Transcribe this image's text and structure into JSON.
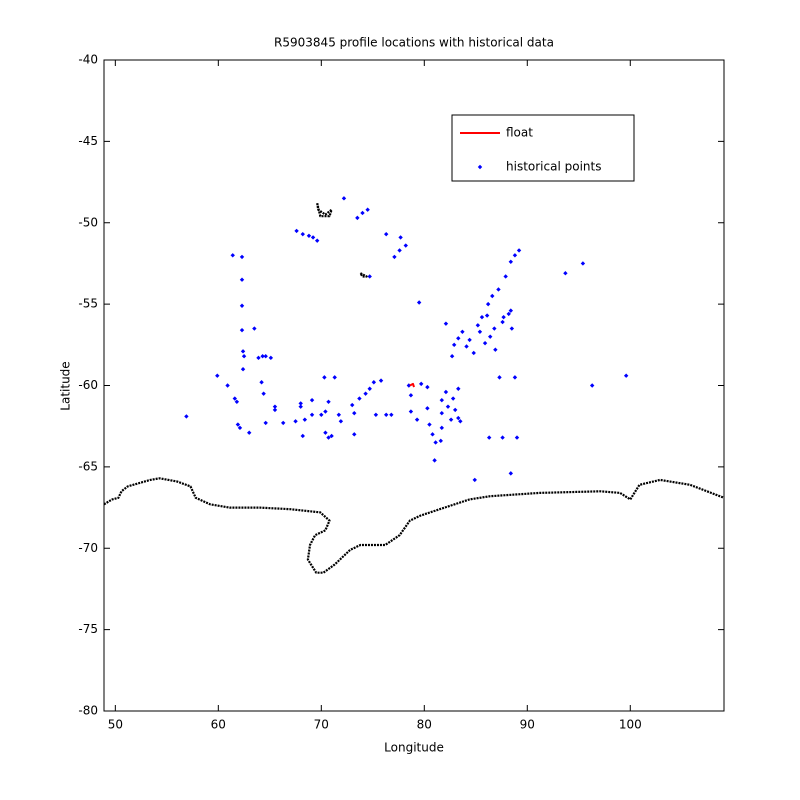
{
  "chart_data": {
    "type": "scatter",
    "title": "R5903845 profile locations with historical data",
    "x_label": "Longitude",
    "y_label": "Latitude",
    "xlim": [
      48.9,
      109.1
    ],
    "ylim": [
      -80,
      -40
    ],
    "xticks": [
      50,
      60,
      70,
      80,
      90,
      100
    ],
    "yticks": [
      -40,
      -45,
      -50,
      -55,
      -60,
      -65,
      -70,
      -75,
      -80
    ],
    "grid": false,
    "legend": "northeast",
    "series": [
      {
        "name": "float",
        "color": "#ff0000",
        "style": "line",
        "x": [
          78.6,
          78.9,
          79.0
        ],
        "values": [
          -60.0,
          -59.9,
          -60.1
        ]
      },
      {
        "name": "historical points",
        "color": "#0000ff",
        "style": "points",
        "x": [
          72.2,
          73.5,
          74.0,
          74.5,
          67.6,
          68.2,
          68.8,
          69.2,
          69.6,
          76.3,
          77.7,
          78.2,
          77.6,
          77.1,
          74.7,
          79.5,
          61.4,
          62.3,
          62.3,
          62.3,
          62.3,
          62.4,
          62.5,
          62.4,
          63.5,
          63.9,
          64.3,
          64.6,
          65.1,
          59.9,
          60.9,
          61.6,
          61.8,
          61.9,
          62.1,
          63.0,
          56.9,
          64.2,
          64.4,
          65.5,
          65.5,
          64.6,
          66.3,
          67.5,
          68.0,
          68.0,
          68.4,
          68.2,
          69.1,
          69.1,
          70.0,
          70.3,
          70.7,
          70.4,
          70.4,
          70.7,
          71.0,
          71.3,
          71.7,
          71.9,
          73.0,
          73.2,
          73.2,
          73.7,
          74.3,
          74.7,
          75.1,
          75.8,
          75.3,
          76.3,
          76.8,
          78.5,
          78.7,
          78.7,
          79.3,
          79.7,
          80.3,
          80.3,
          80.5,
          80.8,
          81.1,
          81.0,
          81.6,
          81.7,
          81.7,
          81.7,
          82.1,
          82.3,
          82.6,
          82.8,
          83.0,
          83.3,
          83.3,
          83.5,
          84.9,
          82.1,
          82.9,
          82.7,
          83.3,
          83.7,
          84.1,
          84.4,
          84.8,
          85.2,
          85.4,
          85.6,
          85.9,
          86.1,
          86.2,
          86.4,
          86.6,
          86.8,
          86.9,
          87.2,
          87.6,
          87.7,
          88.2,
          88.4,
          87.9,
          88.4,
          88.8,
          89.2,
          88.5,
          87.3,
          88.8,
          86.3,
          87.6,
          89.0,
          88.4,
          93.7,
          95.4,
          96.3,
          99.6
        ],
        "values": [
          -48.5,
          -49.7,
          -49.4,
          -49.2,
          -50.5,
          -50.7,
          -50.8,
          -50.9,
          -51.1,
          -50.7,
          -50.9,
          -51.4,
          -51.7,
          -52.1,
          -53.3,
          -54.9,
          -52.0,
          -52.1,
          -53.5,
          -55.1,
          -56.6,
          -57.9,
          -58.2,
          -59.0,
          -56.5,
          -58.3,
          -58.2,
          -58.2,
          -58.3,
          -59.4,
          -60.0,
          -60.8,
          -61.0,
          -62.4,
          -62.6,
          -62.9,
          -61.9,
          -59.8,
          -60.5,
          -61.3,
          -61.5,
          -62.3,
          -62.3,
          -62.2,
          -61.1,
          -61.3,
          -62.1,
          -63.1,
          -60.9,
          -61.8,
          -61.8,
          -59.5,
          -61.0,
          -61.6,
          -62.9,
          -63.2,
          -63.1,
          -59.5,
          -61.8,
          -62.2,
          -61.2,
          -61.7,
          -63.0,
          -60.8,
          -60.5,
          -60.2,
          -59.8,
          -59.7,
          -61.8,
          -61.8,
          -61.8,
          -60.0,
          -60.6,
          -61.6,
          -62.1,
          -59.9,
          -60.1,
          -61.4,
          -62.4,
          -63.0,
          -63.5,
          -64.6,
          -63.4,
          -62.6,
          -61.7,
          -60.9,
          -60.4,
          -61.3,
          -62.1,
          -60.8,
          -61.5,
          -60.2,
          -62.0,
          -62.2,
          -65.8,
          -56.2,
          -57.5,
          -58.2,
          -57.1,
          -56.7,
          -57.6,
          -57.2,
          -58.0,
          -56.3,
          -56.7,
          -55.8,
          -57.4,
          -55.7,
          -55.0,
          -57.0,
          -54.5,
          -56.5,
          -57.8,
          -54.1,
          -56.1,
          -55.8,
          -55.6,
          -55.4,
          -53.3,
          -52.4,
          -52.0,
          -51.7,
          -56.5,
          -59.5,
          -59.5,
          -63.2,
          -63.2,
          -63.2,
          -65.4,
          -53.1,
          -52.5,
          -60.0,
          -59.4
        ]
      },
      {
        "color": "#000000",
        "style": "line",
        "x": [
          48.9,
          49.7,
          50.3,
          50.6,
          51.2,
          53.4,
          54.3,
          56.0,
          57.3,
          57.8,
          59.2,
          61.1,
          64.0,
          67.0,
          69.9,
          70.8,
          70.4,
          69.4,
          68.9,
          68.7,
          69.5,
          70.2,
          71.3,
          72.8,
          73.8,
          76.2,
          77.6,
          78.6,
          79.6,
          81.5,
          84.4,
          86.4,
          91.2,
          97.1,
          99.0,
          100.0,
          100.9,
          102.9,
          105.8,
          109.1,
          null,
          69.6,
          69.7,
          70.4,
          71.0,
          70.8,
          69.9,
          69.6,
          null,
          73.8,
          74.4,
          74.0,
          73.8
        ],
        "values": [
          -67.3,
          -67.0,
          -66.9,
          -66.5,
          -66.2,
          -65.8,
          -65.7,
          -65.9,
          -66.2,
          -66.9,
          -67.3,
          -67.5,
          -67.5,
          -67.6,
          -67.8,
          -68.3,
          -68.9,
          -69.2,
          -69.8,
          -70.7,
          -71.5,
          -71.5,
          -71.0,
          -70.1,
          -69.8,
          -69.8,
          -69.2,
          -68.3,
          -68.0,
          -67.6,
          -67.0,
          -66.8,
          -66.6,
          -66.5,
          -66.6,
          -67.0,
          -66.1,
          -65.8,
          -66.1,
          -66.9,
          null,
          -48.8,
          -49.2,
          -49.5,
          -49.2,
          -49.6,
          -49.6,
          -48.8,
          null,
          -53.1,
          -53.3,
          -53.3,
          -53.1
        ]
      }
    ]
  }
}
